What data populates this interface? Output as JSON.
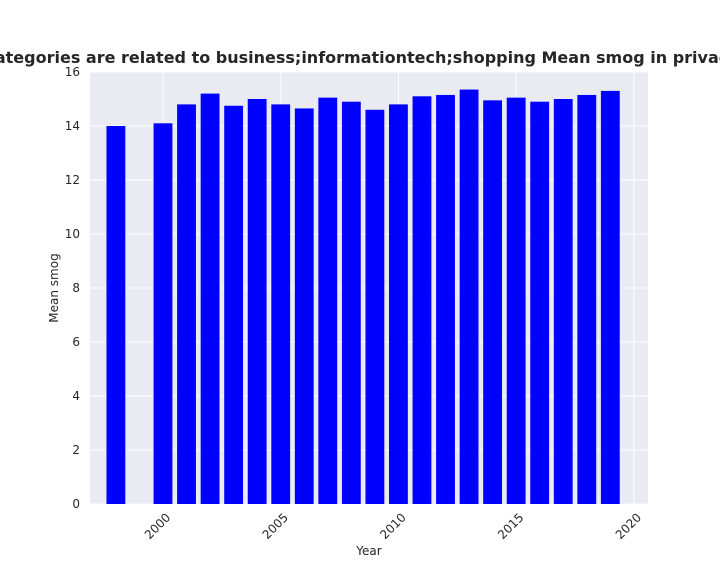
{
  "chart_data": {
    "type": "bar",
    "title": "Which domain categories are related to business;informationtech;shopping Mean smog in privacy policies by year",
    "xlabel": "Year",
    "ylabel": "Mean smog",
    "x": [
      1998,
      2000,
      2001,
      2002,
      2003,
      2004,
      2005,
      2006,
      2007,
      2008,
      2009,
      2010,
      2011,
      2012,
      2013,
      2014,
      2015,
      2016,
      2017,
      2018,
      2019
    ],
    "values": [
      14.0,
      14.1,
      14.8,
      15.2,
      14.75,
      15.0,
      14.8,
      14.65,
      15.05,
      14.9,
      14.6,
      14.8,
      15.1,
      15.15,
      15.35,
      14.95,
      15.05,
      14.9,
      15.0,
      15.15,
      15.3
    ],
    "xlim": [
      1996.9,
      2020.6
    ],
    "ylim": [
      0,
      16
    ],
    "xticks": [
      "2000",
      "2005",
      "2010",
      "2015",
      "2020"
    ],
    "yticks": [
      "0",
      "2",
      "4",
      "6",
      "8",
      "10",
      "12",
      "14",
      "16"
    ],
    "bar_color": "#0000ff",
    "plot_background": "#eaeaf2",
    "grid": true,
    "legend": "none"
  }
}
